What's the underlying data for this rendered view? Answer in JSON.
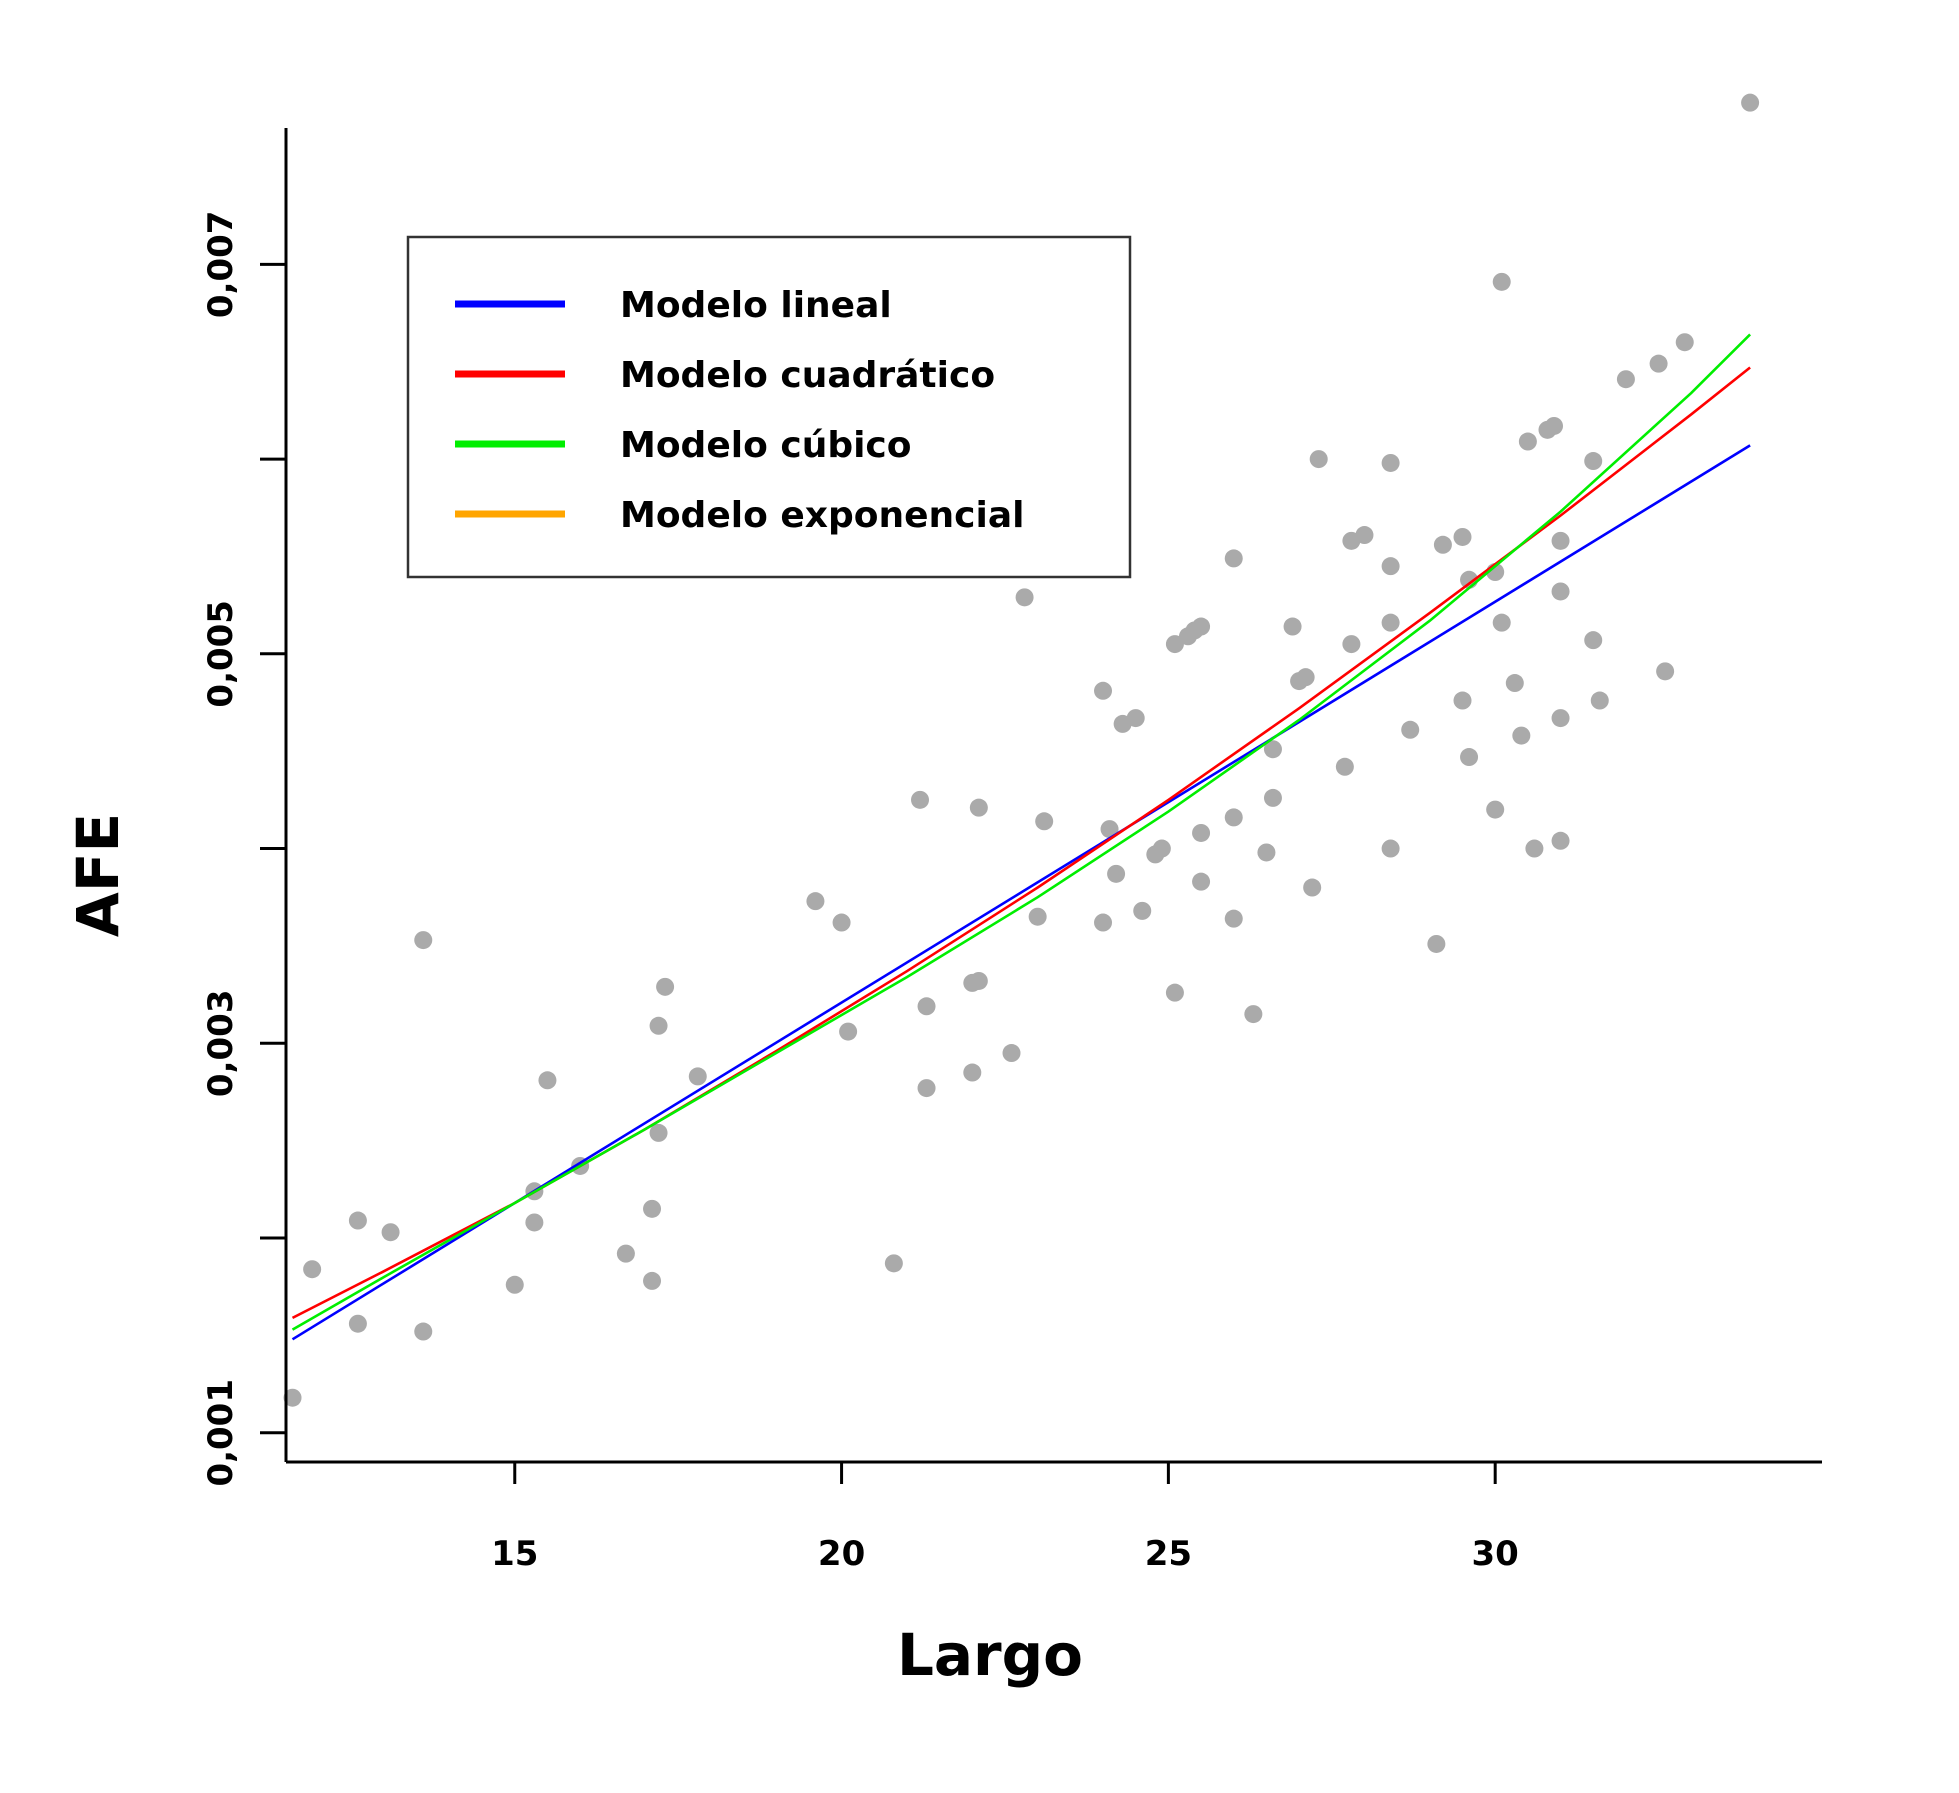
{
  "chart_data": {
    "type": "scatter",
    "title": "",
    "xlabel": "Largo",
    "ylabel": "AFE",
    "xlim": [
      11.5,
      35.0
    ],
    "ylim": [
      0.00085,
      0.0077
    ],
    "x_ticks": [
      15,
      20,
      25,
      30
    ],
    "x_tick_labels": [
      "15",
      "20",
      "25",
      "30"
    ],
    "y_ticks": [
      0.001,
      0.002,
      0.003,
      0.004,
      0.005,
      0.006,
      0.007
    ],
    "y_tick_labels": [
      "0,001",
      "",
      "0,003",
      "",
      "0,005",
      "",
      "0,007"
    ],
    "grid": false,
    "legend_position": "top-left",
    "point_color": "#aaaaaa",
    "points": [
      [
        11.6,
        0.00118
      ],
      [
        11.9,
        0.00184
      ],
      [
        12.6,
        0.00209
      ],
      [
        12.6,
        0.00156
      ],
      [
        13.1,
        0.00203
      ],
      [
        13.6,
        0.00152
      ],
      [
        13.6,
        0.00353
      ],
      [
        15.0,
        0.00176
      ],
      [
        15.3,
        0.00224
      ],
      [
        15.3,
        0.00208
      ],
      [
        15.5,
        0.00281
      ],
      [
        16.0,
        0.00237
      ],
      [
        16.7,
        0.00192
      ],
      [
        17.1,
        0.00178
      ],
      [
        17.1,
        0.00215
      ],
      [
        17.2,
        0.00254
      ],
      [
        17.2,
        0.00309
      ],
      [
        17.3,
        0.00329
      ],
      [
        17.8,
        0.00283
      ],
      [
        19.6,
        0.00373
      ],
      [
        20.0,
        0.00362
      ],
      [
        20.1,
        0.00306
      ],
      [
        20.8,
        0.00187
      ],
      [
        21.2,
        0.00425
      ],
      [
        21.3,
        0.00319
      ],
      [
        21.3,
        0.00277
      ],
      [
        22.0,
        0.00285
      ],
      [
        22.1,
        0.00421
      ],
      [
        22.0,
        0.00331
      ],
      [
        22.1,
        0.00332
      ],
      [
        22.6,
        0.00295
      ],
      [
        22.8,
        0.00529
      ],
      [
        23.0,
        0.00365
      ],
      [
        23.1,
        0.00414
      ],
      [
        24.0,
        0.00362
      ],
      [
        24.0,
        0.00481
      ],
      [
        24.1,
        0.0041
      ],
      [
        24.2,
        0.00387
      ],
      [
        24.3,
        0.00464
      ],
      [
        24.5,
        0.00467
      ],
      [
        24.6,
        0.00368
      ],
      [
        24.8,
        0.00397
      ],
      [
        24.9,
        0.004
      ],
      [
        25.1,
        0.00505
      ],
      [
        25.1,
        0.00326
      ],
      [
        25.3,
        0.00509
      ],
      [
        25.4,
        0.00512
      ],
      [
        25.5,
        0.00514
      ],
      [
        25.5,
        0.00408
      ],
      [
        25.5,
        0.00383
      ],
      [
        26.0,
        0.00549
      ],
      [
        26.0,
        0.00364
      ],
      [
        26.0,
        0.00416
      ],
      [
        26.3,
        0.00315
      ],
      [
        26.5,
        0.00398
      ],
      [
        26.6,
        0.00426
      ],
      [
        26.6,
        0.00451
      ],
      [
        26.9,
        0.00514
      ],
      [
        27.0,
        0.00486
      ],
      [
        27.1,
        0.00488
      ],
      [
        27.2,
        0.0038
      ],
      [
        27.3,
        0.006
      ],
      [
        27.7,
        0.00442
      ],
      [
        27.8,
        0.00505
      ],
      [
        27.8,
        0.00558
      ],
      [
        28.0,
        0.00561
      ],
      [
        28.4,
        0.00598
      ],
      [
        28.4,
        0.00545
      ],
      [
        28.4,
        0.00516
      ],
      [
        28.4,
        0.004
      ],
      [
        28.7,
        0.00461
      ],
      [
        29.1,
        0.00351
      ],
      [
        29.2,
        0.00556
      ],
      [
        29.5,
        0.0056
      ],
      [
        29.5,
        0.00476
      ],
      [
        29.6,
        0.00538
      ],
      [
        29.6,
        0.00447
      ],
      [
        30.0,
        0.0042
      ],
      [
        30.0,
        0.00542
      ],
      [
        30.1,
        0.00691
      ],
      [
        30.1,
        0.00516
      ],
      [
        30.3,
        0.00485
      ],
      [
        30.4,
        0.00458
      ],
      [
        30.5,
        0.00609
      ],
      [
        30.6,
        0.004
      ],
      [
        30.8,
        0.00615
      ],
      [
        30.9,
        0.00617
      ],
      [
        31.0,
        0.00404
      ],
      [
        31.0,
        0.00558
      ],
      [
        31.0,
        0.00532
      ],
      [
        31.0,
        0.00467
      ],
      [
        31.5,
        0.00599
      ],
      [
        31.5,
        0.00507
      ],
      [
        31.6,
        0.00476
      ],
      [
        32.0,
        0.00641
      ],
      [
        32.5,
        0.00649
      ],
      [
        32.6,
        0.00491
      ],
      [
        32.9,
        0.0066
      ],
      [
        33.9,
        0.00783
      ]
    ],
    "series": [
      {
        "name": "Modelo lineal",
        "color": "#0000ff",
        "x": [
          11.6,
          33.9
        ],
        "y": [
          0.00148,
          0.00607
        ]
      },
      {
        "name": "Modelo cuadrático",
        "color": "#ff0000",
        "x": [
          11.6,
          13.0,
          15.0,
          17.0,
          19.0,
          21.0,
          23.0,
          25.0,
          27.0,
          29.0,
          31.0,
          33.0,
          33.9
        ],
        "y": [
          0.00159,
          0.00183,
          0.00218,
          0.00256,
          0.00296,
          0.00337,
          0.0038,
          0.00425,
          0.00472,
          0.00521,
          0.00571,
          0.00623,
          0.00647
        ]
      },
      {
        "name": "Modelo cúbico",
        "color": "#00ee00",
        "x": [
          11.6,
          13.0,
          15.0,
          17.0,
          19.0,
          21.0,
          23.0,
          25.0,
          27.0,
          29.0,
          31.0,
          33.0,
          33.9
        ],
        "y": [
          0.00153,
          0.0018,
          0.00218,
          0.00256,
          0.00295,
          0.00334,
          0.00375,
          0.00419,
          0.00466,
          0.00517,
          0.00573,
          0.00634,
          0.00664
        ]
      },
      {
        "name": "Modelo exponencial",
        "color": "#ffa500",
        "x": [],
        "y": []
      }
    ]
  }
}
